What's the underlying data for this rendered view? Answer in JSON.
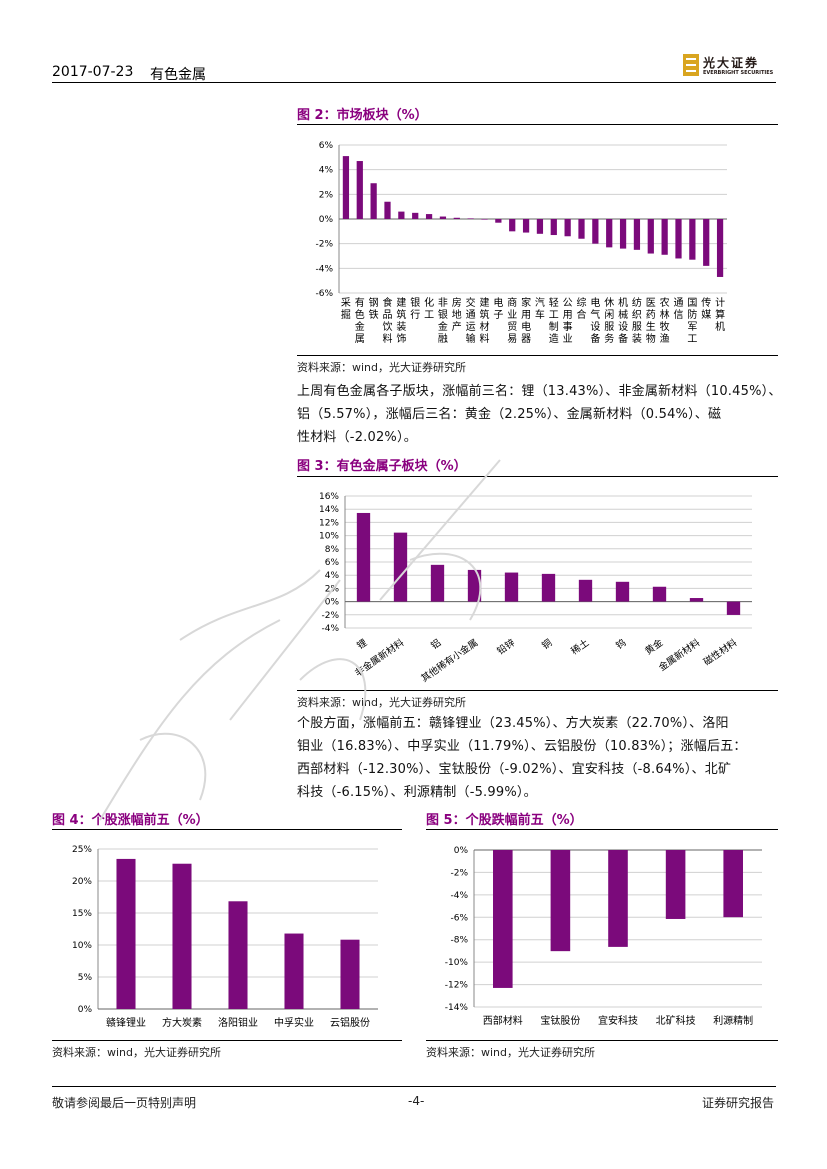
{
  "header": {
    "date": "2017-07-23",
    "topic": "有色金属",
    "logo_cn": "光大证券",
    "logo_en": "EVERBRIGHT SECURITIES"
  },
  "fig2": {
    "title": "图 2：市场板块（%）",
    "source": "资料来源：wind，光大证券研究所",
    "chart_data": {
      "type": "bar",
      "categories": [
        "采掘",
        "有色金属",
        "钢铁",
        "食品饮料",
        "建筑装饰",
        "银行",
        "化工",
        "非银金融",
        "房地产",
        "交通运输",
        "建筑材料",
        "电子",
        "商业贸易",
        "家用电器",
        "汽车",
        "轻工制造",
        "公用事业",
        "综合",
        "电气设备",
        "休闲服务",
        "机械设备",
        "纺织服装",
        "医药生物",
        "农林牧渔",
        "通信",
        "国防军工",
        "传媒",
        "计算机"
      ],
      "values": [
        5.1,
        4.7,
        2.9,
        1.4,
        0.6,
        0.5,
        0.4,
        0.2,
        0.1,
        0.05,
        -0.05,
        -0.3,
        -1.0,
        -1.1,
        -1.2,
        -1.3,
        -1.4,
        -1.6,
        -2.0,
        -2.3,
        -2.4,
        -2.5,
        -2.8,
        -2.9,
        -3.2,
        -3.3,
        -3.8,
        -4.7
      ],
      "yticks": [
        "6%",
        "4%",
        "2%",
        "0%",
        "-2%",
        "-4%",
        "-6%"
      ],
      "ylim": [
        -6,
        6
      ],
      "color": "#7b0a7b"
    }
  },
  "para1": {
    "lines": [
      "上周有色金属各子版块，涨幅前三名：锂（13.43%）、非金属新材料（10.45%）、",
      "铝（5.57%），涨幅后三名：黄金（2.25%）、金属新材料（0.54%）、磁",
      "性材料（-2.02%）。"
    ]
  },
  "fig3": {
    "title": "图 3：有色金属子板块（%）",
    "source": "资料来源：wind，光大证券研究所",
    "chart_data": {
      "type": "bar",
      "categories": [
        "锂",
        "非金属新材料",
        "铝",
        "其他稀有小金属",
        "铅锌",
        "铜",
        "稀土",
        "钨",
        "黄金",
        "金属新材料",
        "磁性材料"
      ],
      "values": [
        13.43,
        10.45,
        5.57,
        4.8,
        4.4,
        4.2,
        3.3,
        3.0,
        2.25,
        0.54,
        -2.02
      ],
      "yticks": [
        "16%",
        "14%",
        "12%",
        "10%",
        "8%",
        "6%",
        "4%",
        "2%",
        "0%",
        "-2%",
        "-4%"
      ],
      "ylim": [
        -4,
        16
      ],
      "color": "#7b0a7b"
    }
  },
  "para2": {
    "lines": [
      "个股方面，涨幅前五：赣锋锂业（23.45%）、方大炭素（22.70%）、洛阳",
      "钼业（16.83%）、中孚实业（11.79%）、云铝股份（10.83%）；涨幅后五：",
      "西部材料（-12.30%）、宝钛股份（-9.02%）、宜安科技（-8.64%）、北矿",
      "科技（-6.15%）、利源精制（-5.99%）。"
    ]
  },
  "fig4": {
    "title": "图 4：个股涨幅前五（%）",
    "source": "资料来源：wind，光大证券研究所",
    "chart_data": {
      "type": "bar",
      "categories": [
        "赣锋锂业",
        "方大炭素",
        "洛阳钼业",
        "中孚实业",
        "云铝股份"
      ],
      "values": [
        23.45,
        22.7,
        16.83,
        11.79,
        10.83
      ],
      "yticks": [
        "25%",
        "20%",
        "15%",
        "10%",
        "5%",
        "0%"
      ],
      "ylim": [
        0,
        25
      ],
      "color": "#7b0a7b"
    }
  },
  "fig5": {
    "title": "图 5：个股跌幅前五（%）",
    "source": "资料来源：wind，光大证券研究所",
    "chart_data": {
      "type": "bar",
      "categories": [
        "西部材料",
        "宝钛股份",
        "宜安科技",
        "北矿科技",
        "利源精制"
      ],
      "values": [
        -12.3,
        -9.02,
        -8.64,
        -6.15,
        -5.99
      ],
      "yticks": [
        "0%",
        "-2%",
        "-4%",
        "-6%",
        "-8%",
        "-10%",
        "-12%",
        "-14%"
      ],
      "ylim": [
        -14,
        0
      ],
      "color": "#7b0a7b"
    }
  },
  "footer": {
    "left": "敬请参阅最后一页特别声明",
    "center": "-4-",
    "right": "证券研究报告"
  }
}
